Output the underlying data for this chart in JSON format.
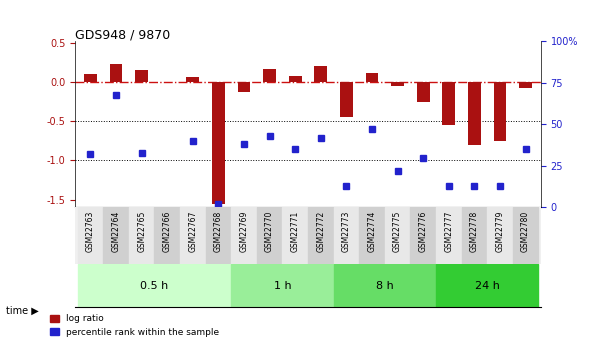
{
  "title": "GDS948 / 9870",
  "samples": [
    "GSM22763",
    "GSM22764",
    "GSM22765",
    "GSM22766",
    "GSM22767",
    "GSM22768",
    "GSM22769",
    "GSM22770",
    "GSM22771",
    "GSM22772",
    "GSM22773",
    "GSM22774",
    "GSM22775",
    "GSM22776",
    "GSM22777",
    "GSM22778",
    "GSM22779",
    "GSM22780"
  ],
  "log_ratio": [
    0.1,
    0.23,
    0.16,
    0.0,
    0.07,
    -1.56,
    -0.12,
    0.17,
    0.08,
    0.2,
    -0.45,
    0.12,
    -0.05,
    -0.25,
    -0.55,
    -0.8,
    -0.75,
    -0.08
  ],
  "percentile": [
    32,
    68,
    33,
    null,
    40,
    2,
    38,
    43,
    35,
    42,
    13,
    47,
    22,
    30,
    13,
    13,
    13,
    35
  ],
  "time_groups": [
    {
      "label": "0.5 h",
      "start": 0,
      "end": 5,
      "color": "#ccffcc"
    },
    {
      "label": "1 h",
      "start": 6,
      "end": 9,
      "color": "#99ee99"
    },
    {
      "label": "8 h",
      "start": 10,
      "end": 13,
      "color": "#66dd66"
    },
    {
      "label": "24 h",
      "start": 14,
      "end": 17,
      "color": "#33cc33"
    }
  ],
  "bar_color": "#aa1111",
  "dot_color": "#2222cc",
  "dash_color": "#cc1111",
  "ylim_left": [
    -1.6,
    0.52
  ],
  "ylim_right": [
    0,
    100
  ],
  "yticks_left": [
    -1.5,
    -1.0,
    -0.5,
    0.0,
    0.5
  ],
  "yticks_right": [
    0,
    25,
    50,
    75,
    100
  ],
  "dotted_lines": [
    -0.5,
    -1.0
  ],
  "background_color": "#ffffff"
}
